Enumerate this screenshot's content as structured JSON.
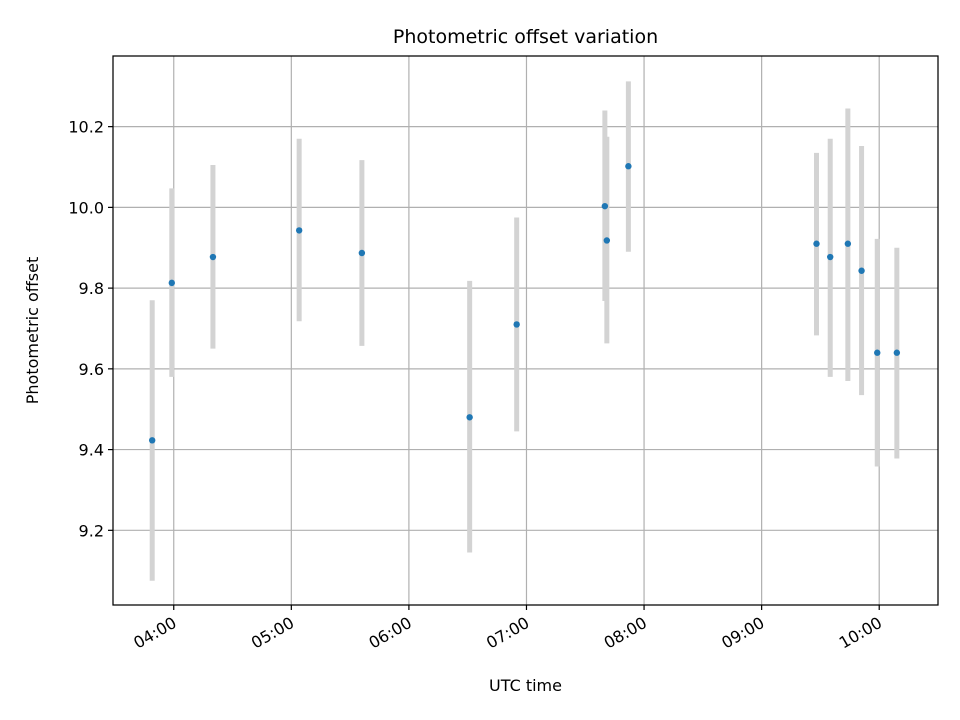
{
  "chart_data": {
    "type": "scatter",
    "title": "Photometric offset variation",
    "xlabel": "UTC time",
    "ylabel": "Photometric offset",
    "x_axis_kind": "time",
    "xlim": [
      "03:29",
      "10:30"
    ],
    "ylim": [
      9.015,
      10.375
    ],
    "x_ticks": [
      "04:00",
      "05:00",
      "06:00",
      "07:00",
      "08:00",
      "09:00",
      "10:00"
    ],
    "y_ticks": [
      9.2,
      9.4,
      9.6,
      9.8,
      10.0,
      10.2
    ],
    "y_tick_labels": [
      "9.2",
      "9.4",
      "9.6",
      "9.8",
      "10.0",
      "10.2"
    ],
    "grid": true,
    "marker_color": "#1f77b4",
    "errorbar_color": "#d3d3d3",
    "series": [
      {
        "points": [
          {
            "x": "03:49",
            "y": 9.423,
            "yerr_low": 9.075,
            "yerr_high": 9.77
          },
          {
            "x": "03:59",
            "y": 9.813,
            "yerr_low": 9.58,
            "yerr_high": 10.047
          },
          {
            "x": "04:20",
            "y": 9.877,
            "yerr_low": 9.65,
            "yerr_high": 10.105
          },
          {
            "x": "05:04",
            "y": 9.943,
            "yerr_low": 9.718,
            "yerr_high": 10.17
          },
          {
            "x": "05:36",
            "y": 9.887,
            "yerr_low": 9.657,
            "yerr_high": 10.117
          },
          {
            "x": "06:31",
            "y": 9.48,
            "yerr_low": 9.145,
            "yerr_high": 9.818
          },
          {
            "x": "06:55",
            "y": 9.71,
            "yerr_low": 9.445,
            "yerr_high": 9.975
          },
          {
            "x": "07:40",
            "y": 10.003,
            "yerr_low": 9.768,
            "yerr_high": 10.24
          },
          {
            "x": "07:41",
            "y": 9.918,
            "yerr_low": 9.663,
            "yerr_high": 10.175
          },
          {
            "x": "07:52",
            "y": 10.102,
            "yerr_low": 9.89,
            "yerr_high": 10.312
          },
          {
            "x": "09:28",
            "y": 9.91,
            "yerr_low": 9.683,
            "yerr_high": 10.135
          },
          {
            "x": "09:35",
            "y": 9.877,
            "yerr_low": 9.58,
            "yerr_high": 10.17
          },
          {
            "x": "09:44",
            "y": 9.91,
            "yerr_low": 9.57,
            "yerr_high": 10.245
          },
          {
            "x": "09:51",
            "y": 9.843,
            "yerr_low": 9.535,
            "yerr_high": 10.152
          },
          {
            "x": "09:59",
            "y": 9.64,
            "yerr_low": 9.358,
            "yerr_high": 9.922
          },
          {
            "x": "10:09",
            "y": 9.64,
            "yerr_low": 9.378,
            "yerr_high": 9.9
          }
        ]
      }
    ]
  }
}
